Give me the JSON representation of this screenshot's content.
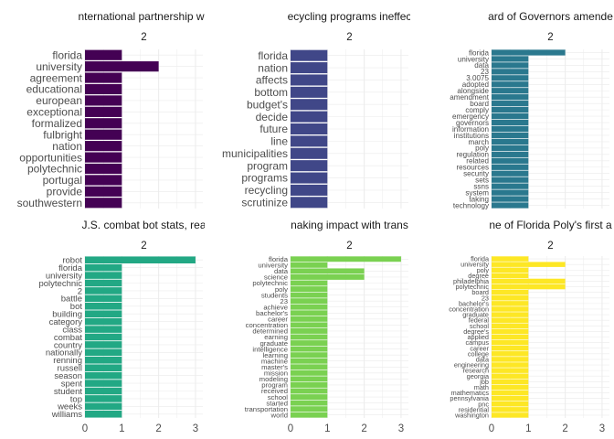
{
  "chart_data": [
    {
      "type": "bar",
      "orientation": "horizontal",
      "title": "nternational partnership wit",
      "subtitle": "2",
      "color": "#440154",
      "xlim": [
        0,
        3.2
      ],
      "xticks": [],
      "categories": [
        "florida",
        "university",
        "agreement",
        "educational",
        "european",
        "exceptional",
        "formalized",
        "fulbright",
        "nation",
        "opportunities",
        "polytechnic",
        "portugal",
        "provide",
        "southwestern"
      ],
      "values": [
        1,
        2,
        1,
        1,
        1,
        1,
        1,
        1,
        1,
        1,
        1,
        1,
        1,
        1
      ]
    },
    {
      "type": "bar",
      "orientation": "horizontal",
      "title": "ecycling programs ineffec",
      "subtitle": "2",
      "color": "#404788",
      "xlim": [
        0,
        3.2
      ],
      "xticks": [],
      "categories": [
        "florida",
        "nation",
        "affects",
        "bottom",
        "budget's",
        "decide",
        "future",
        "line",
        "municipalities",
        "program",
        "programs",
        "recycling",
        "scrutinize"
      ],
      "values": [
        1,
        1,
        1,
        1,
        1,
        1,
        1,
        1,
        1,
        1,
        1,
        1,
        1
      ]
    },
    {
      "type": "bar",
      "orientation": "horizontal",
      "title": "ard of Governors amende",
      "subtitle": "2",
      "color": "#2a788e",
      "xlim": [
        0,
        3.2
      ],
      "xticks": [],
      "categories": [
        "florida",
        "university",
        "data",
        "23",
        "3.0075",
        "adopted",
        "alongside",
        "amendment",
        "board",
        "comply",
        "emergency",
        "governors",
        "information",
        "institutions",
        "march",
        "poly",
        "regulation",
        "related",
        "resources",
        "security",
        "sets",
        "ssns",
        "system",
        "taking",
        "technology"
      ],
      "values": [
        2,
        1,
        1,
        1,
        1,
        1,
        1,
        1,
        1,
        1,
        1,
        1,
        1,
        1,
        1,
        1,
        1,
        1,
        1,
        1,
        1,
        1,
        1,
        1,
        1
      ]
    },
    {
      "type": "bar",
      "orientation": "horizontal",
      "title": "J.S. combat bot stats, rea",
      "subtitle": "2",
      "color": "#22a884",
      "xlim": [
        0,
        3.2
      ],
      "xticks": [
        0,
        1,
        2,
        3
      ],
      "categories": [
        "robot",
        "florida",
        "university",
        "polytechnic",
        "2",
        "battle",
        "bot",
        "building",
        "category",
        "class",
        "combat",
        "country",
        "nationally",
        "renning",
        "russell",
        "season",
        "spent",
        "student",
        "top",
        "weeks",
        "williams"
      ],
      "values": [
        3,
        1,
        1,
        1,
        1,
        1,
        1,
        1,
        1,
        1,
        1,
        1,
        1,
        1,
        1,
        1,
        1,
        1,
        1,
        1,
        1
      ]
    },
    {
      "type": "bar",
      "orientation": "horizontal",
      "title": "naking impact with trans",
      "subtitle": "2",
      "color": "#7ad151",
      "xlim": [
        0,
        3.2
      ],
      "xticks": [
        0,
        1,
        2,
        3
      ],
      "categories": [
        "florida",
        "university",
        "data",
        "science",
        "polytechnic",
        "poly",
        "students",
        "23",
        "achieve",
        "bachelor's",
        "career",
        "concentration",
        "determined",
        "earning",
        "graduate",
        "intelligence",
        "learning",
        "machine",
        "master's",
        "mission",
        "modeling",
        "program",
        "received",
        "school",
        "started",
        "transportation",
        "world"
      ],
      "values": [
        3,
        1,
        2,
        2,
        1,
        1,
        1,
        1,
        1,
        1,
        1,
        1,
        1,
        1,
        1,
        1,
        1,
        1,
        1,
        1,
        1,
        1,
        1,
        1,
        1,
        1,
        1
      ]
    },
    {
      "type": "bar",
      "orientation": "horizontal",
      "title": "ne of Florida Poly's first a",
      "subtitle": "2",
      "color": "#fde725",
      "xlim": [
        0,
        3.2
      ],
      "xticks": [
        0,
        1,
        2,
        3
      ],
      "categories": [
        "florida",
        "university",
        "poly",
        "degree",
        "philadelphia",
        "polytechnic",
        "board",
        "23",
        "bachelor's",
        "concentration",
        "graduate",
        "federal",
        "school",
        "degree's",
        "applied",
        "campus",
        "career",
        "college",
        "data",
        "engineering",
        "research",
        "georgia",
        "job",
        "math",
        "mathematics",
        "pennsylvania",
        "pnc",
        "residential",
        "washington"
      ],
      "values": [
        1,
        2,
        1,
        1,
        2,
        2,
        1,
        1,
        1,
        1,
        1,
        1,
        1,
        1,
        1,
        1,
        1,
        1,
        1,
        1,
        1,
        1,
        1,
        1,
        1,
        1,
        1,
        1,
        1
      ]
    }
  ]
}
